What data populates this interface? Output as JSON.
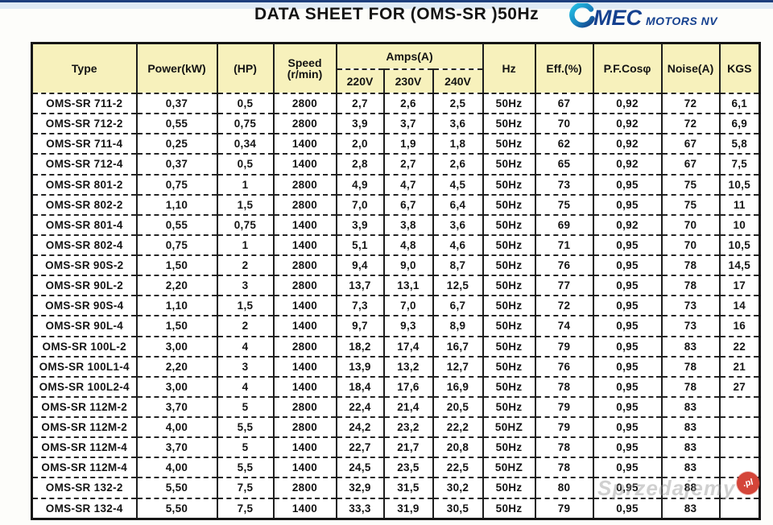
{
  "header": {
    "title": "DATA SHEET FOR (OMS-SR )50Hz",
    "logo": {
      "mark": "omec-swirl",
      "name": "MEC",
      "suffix": "MOTORS NV"
    }
  },
  "watermark": {
    "text": "Sprzedajemy",
    "badge": ".pl"
  },
  "colors": {
    "header_bg": "#f7f1bc",
    "border": "#1d1d1d",
    "logo_navy": "#15418f",
    "logo_teal": "#1fb0da",
    "watermark_red": "#d44539",
    "top_strip_blue": "#dfeaf4"
  },
  "table": {
    "columns": {
      "type": "Type",
      "power": "Power(kW)",
      "hp": "(HP)",
      "speed_line1": "Speed",
      "speed_line2": "(r/min)",
      "amps": "Amps(A)",
      "v220": "220V",
      "v230": "230V",
      "v240": "240V",
      "hz": "Hz",
      "eff": "Eff.(%)",
      "pf": "P.F.Cosφ",
      "noise": "Noise(A)",
      "kgs": "KGS"
    },
    "column_keys": [
      "type",
      "power_kw",
      "hp",
      "speed",
      "amps_220v",
      "amps_230v",
      "amps_240v",
      "hz",
      "eff_pct",
      "pf_cos",
      "noise",
      "kgs"
    ],
    "rows": [
      [
        "OMS-SR 711-2",
        "0,37",
        "0,5",
        "2800",
        "2,7",
        "2,6",
        "2,5",
        "50Hz",
        "67",
        "0,92",
        "72",
        "6,1"
      ],
      [
        "OMS-SR 712-2",
        "0,55",
        "0,75",
        "2800",
        "3,9",
        "3,7",
        "3,6",
        "50Hz",
        "70",
        "0,92",
        "72",
        "6,9"
      ],
      [
        "OMS-SR 711-4",
        "0,25",
        "0,34",
        "1400",
        "2,0",
        "1,9",
        "1,8",
        "50Hz",
        "62",
        "0,92",
        "67",
        "5,8"
      ],
      [
        "OMS-SR 712-4",
        "0,37",
        "0,5",
        "1400",
        "2,8",
        "2,7",
        "2,6",
        "50Hz",
        "65",
        "0,92",
        "67",
        "7,5"
      ],
      [
        "OMS-SR 801-2",
        "0,75",
        "1",
        "2800",
        "4,9",
        "4,7",
        "4,5",
        "50Hz",
        "73",
        "0,95",
        "75",
        "10,5"
      ],
      [
        "OMS-SR 802-2",
        "1,10",
        "1,5",
        "2800",
        "7,0",
        "6,7",
        "6,4",
        "50Hz",
        "75",
        "0,95",
        "75",
        "11"
      ],
      [
        "OMS-SR 801-4",
        "0,55",
        "0,75",
        "1400",
        "3,9",
        "3,8",
        "3,6",
        "50Hz",
        "69",
        "0,92",
        "70",
        "10"
      ],
      [
        "OMS-SR 802-4",
        "0,75",
        "1",
        "1400",
        "5,1",
        "4,8",
        "4,6",
        "50Hz",
        "71",
        "0,95",
        "70",
        "10,5"
      ],
      [
        "OMS-SR 90S-2",
        "1,50",
        "2",
        "2800",
        "9,4",
        "9,0",
        "8,7",
        "50Hz",
        "76",
        "0,95",
        "78",
        "14,5"
      ],
      [
        "OMS-SR 90L-2",
        "2,20",
        "3",
        "2800",
        "13,7",
        "13,1",
        "12,5",
        "50Hz",
        "77",
        "0,95",
        "78",
        "17"
      ],
      [
        "OMS-SR 90S-4",
        "1,10",
        "1,5",
        "1400",
        "7,3",
        "7,0",
        "6,7",
        "50Hz",
        "72",
        "0,95",
        "73",
        "14"
      ],
      [
        "OMS-SR 90L-4",
        "1,50",
        "2",
        "1400",
        "9,7",
        "9,3",
        "8,9",
        "50Hz",
        "74",
        "0,95",
        "73",
        "16"
      ],
      [
        "OMS-SR 100L-2",
        "3,00",
        "4",
        "2800",
        "18,2",
        "17,4",
        "16,7",
        "50Hz",
        "79",
        "0,95",
        "83",
        "22"
      ],
      [
        "OMS-SR 100L1-4",
        "2,20",
        "3",
        "1400",
        "13,9",
        "13,2",
        "12,7",
        "50Hz",
        "76",
        "0,95",
        "78",
        "21"
      ],
      [
        "OMS-SR 100L2-4",
        "3,00",
        "4",
        "1400",
        "18,4",
        "17,6",
        "16,9",
        "50Hz",
        "78",
        "0,95",
        "78",
        "27"
      ],
      [
        "OMS-SR 112M-2",
        "3,70",
        "5",
        "2800",
        "22,4",
        "21,4",
        "20,5",
        "50Hz",
        "79",
        "0,95",
        "83",
        ""
      ],
      [
        "OMS-SR 112M-2",
        "4,00",
        "5,5",
        "2800",
        "24,2",
        "23,2",
        "22,2",
        "50HZ",
        "79",
        "0,95",
        "83",
        ""
      ],
      [
        "OMS-SR 112M-4",
        "3,70",
        "5",
        "1400",
        "22,7",
        "21,7",
        "20,8",
        "50Hz",
        "78",
        "0,95",
        "83",
        ""
      ],
      [
        "OMS-SR 112M-4",
        "4,00",
        "5,5",
        "1400",
        "24,5",
        "23,5",
        "22,5",
        "50HZ",
        "78",
        "0,95",
        "83",
        ""
      ],
      [
        "OMS-SR 132-2",
        "5,50",
        "7,5",
        "2800",
        "32,9",
        "31,5",
        "30,2",
        "50Hz",
        "80",
        "0,95",
        "88",
        ""
      ],
      [
        "OMS-SR 132-4",
        "5,50",
        "7,5",
        "1400",
        "33,3",
        "31,9",
        "30,5",
        "50Hz",
        "79",
        "0,95",
        "83",
        ""
      ]
    ]
  }
}
